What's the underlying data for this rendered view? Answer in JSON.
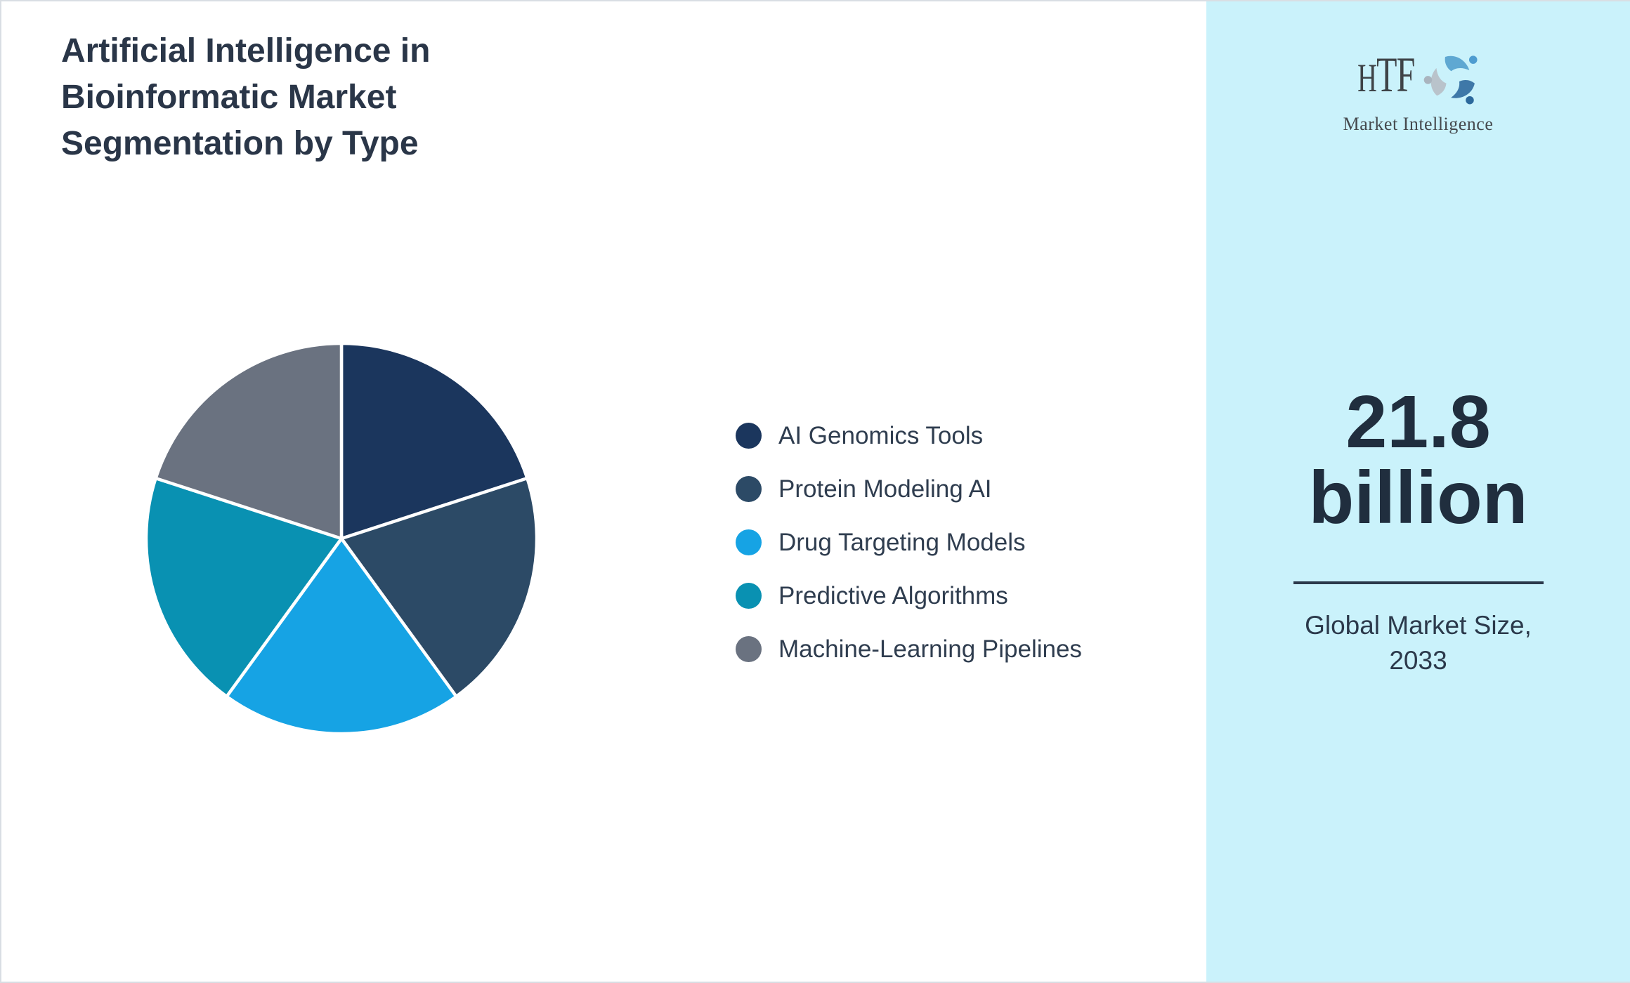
{
  "header": {
    "title": "Artificial Intelligence in\nBioinformatic Market\nSegmentation by Type"
  },
  "chart_data": {
    "type": "pie",
    "title": "Artificial Intelligence in Bioinformatic Market Segmentation by Type",
    "categories": [
      "AI Genomics Tools",
      "Protein Modeling AI",
      "Drug Targeting Models",
      "Predictive Algorithms",
      "Machine-Learning Pipelines"
    ],
    "values": [
      20,
      20,
      20,
      20,
      20
    ],
    "note": "no numeric labels shown; all five slices visually equal (~72 degrees each), estimated 20% per slice",
    "colors": [
      "#1B365D",
      "#2C4A66",
      "#16A3E4",
      "#0991B2",
      "#6A7280"
    ],
    "start_angle_deg": 0,
    "direction": "clockwise",
    "slice_stroke_color": "#FFFFFF",
    "legend_position": "right"
  },
  "legend": {
    "items": [
      {
        "label": "AI Genomics Tools",
        "color": "#1B365D"
      },
      {
        "label": "Protein Modeling AI",
        "color": "#2C4A66"
      },
      {
        "label": "Drug Targeting Models",
        "color": "#16A3E4"
      },
      {
        "label": "Predictive Algorithms",
        "color": "#0991B2"
      },
      {
        "label": "Machine-Learning Pipelines",
        "color": "#6A7280"
      }
    ]
  },
  "sidebar": {
    "background_color": "#CAF2FB",
    "logo": {
      "brand": "HTF",
      "tagline": "Market Intelligence"
    },
    "market_value": "21.8\nbillion",
    "caption": "Global Market Size,\n2033"
  }
}
